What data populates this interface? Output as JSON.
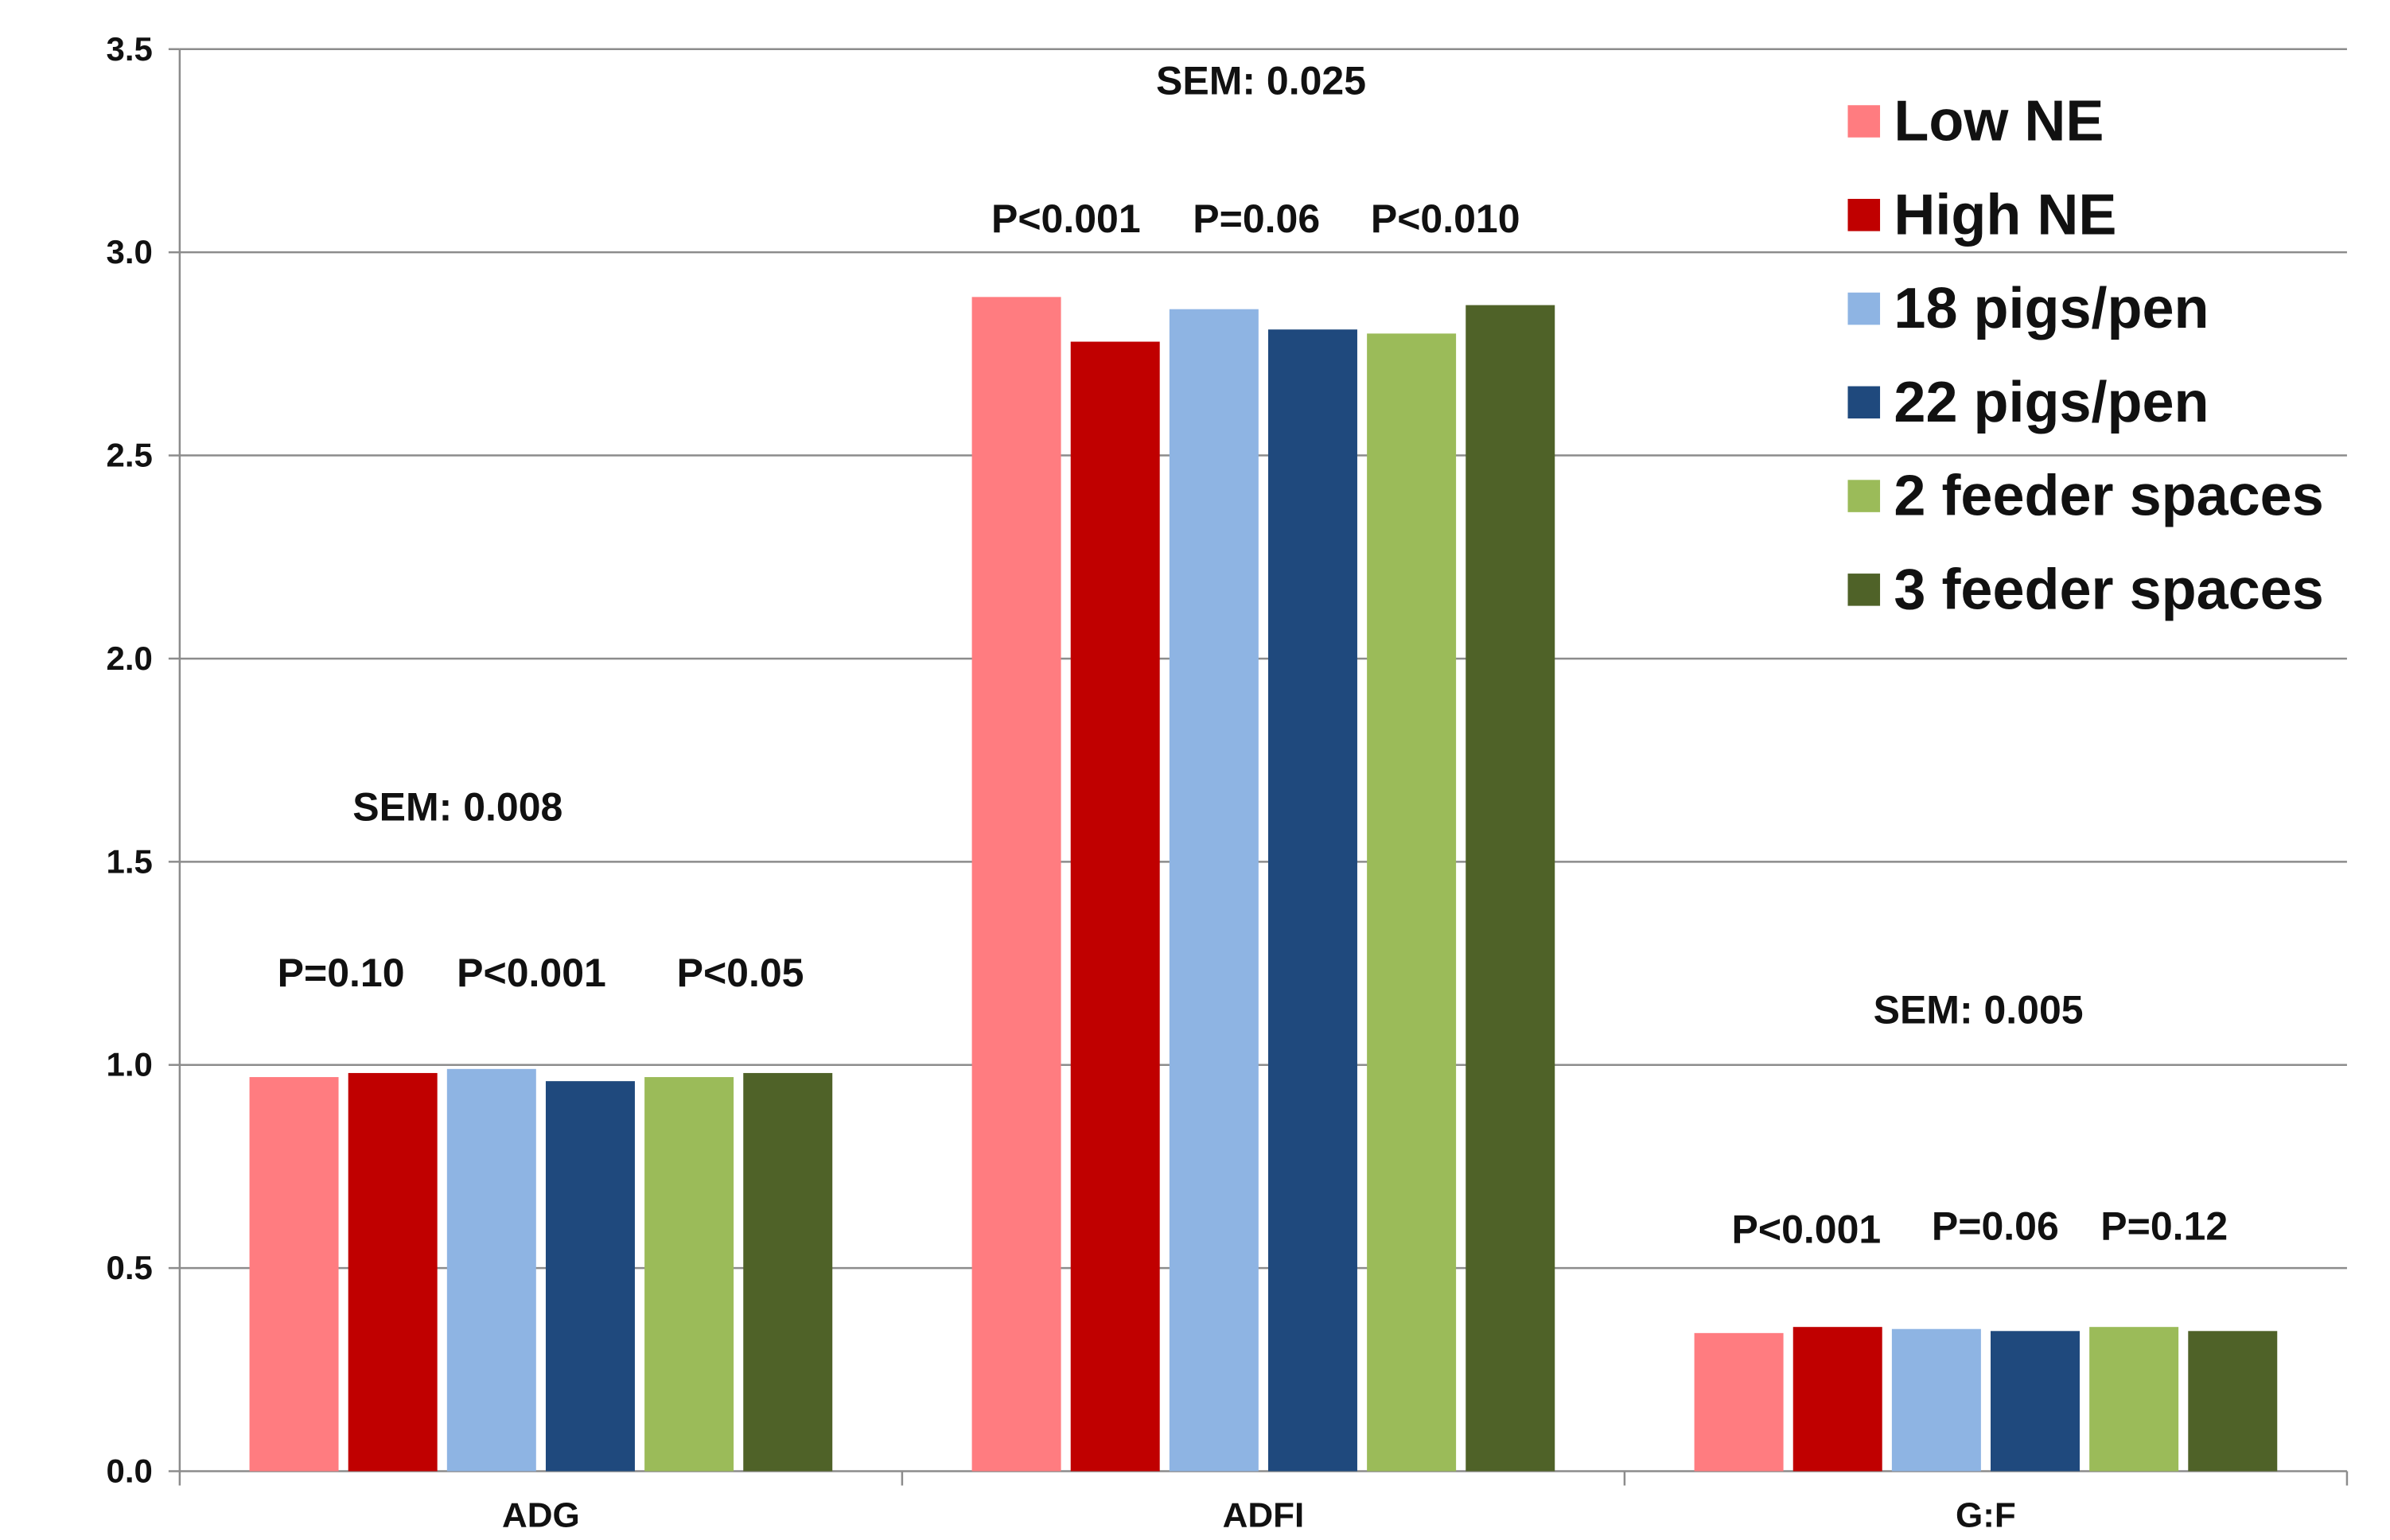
{
  "chart_data": {
    "type": "bar",
    "title": "",
    "xlabel": "",
    "ylabel": "",
    "ylim": [
      0,
      3.5
    ],
    "yticks": [
      "0.0",
      "0.5",
      "1.0",
      "1.5",
      "2.0",
      "2.5",
      "3.0",
      "3.5"
    ],
    "grid": "horizontal",
    "legend_position": "top-right",
    "categories": [
      "ADG",
      "ADFI",
      "G:F"
    ],
    "series": [
      {
        "name": "Low NE",
        "color": "#FF7C80",
        "values": [
          0.97,
          2.89,
          0.34
        ]
      },
      {
        "name": "High NE",
        "color": "#C00000",
        "values": [
          0.98,
          2.78,
          0.355
        ]
      },
      {
        "name": "18 pigs/pen",
        "color": "#8EB4E3",
        "values": [
          0.99,
          2.86,
          0.35
        ]
      },
      {
        "name": "22 pigs/pen",
        "color": "#1F497D",
        "values": [
          0.96,
          2.81,
          0.345
        ]
      },
      {
        "name": "2 feeder spaces",
        "color": "#9BBB59",
        "values": [
          0.97,
          2.8,
          0.355
        ]
      },
      {
        "name": "3 feeder spaces",
        "color": "#4F6228",
        "values": [
          0.98,
          2.87,
          0.345
        ]
      }
    ],
    "annotations": [
      {
        "group": "ADG",
        "sem": "SEM: 0.008",
        "p_values": [
          "P=0.10",
          "P<0.001",
          "P<0.05"
        ]
      },
      {
        "group": "ADFI",
        "sem": "SEM: 0.025",
        "p_values": [
          "P<0.001",
          "P=0.06",
          "P<0.010"
        ]
      },
      {
        "group": "G:F",
        "sem": "SEM: 0.005",
        "p_values": [
          "P<0.001",
          "P=0.06",
          "P=0.12"
        ]
      }
    ]
  }
}
